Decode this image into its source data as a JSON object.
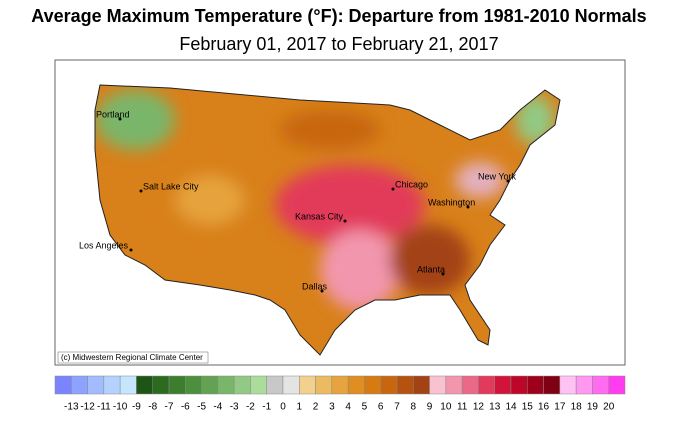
{
  "title": "Average Maximum Temperature (°F): Departure from 1981-2010 Normals",
  "subtitle": "February 01, 2017 to February 21, 2017",
  "credit": "(c) Midwestern Regional Climate Center",
  "cities": [
    "Portland",
    "Salt Lake City",
    "Los Angeles",
    "Kansas City",
    "Dallas",
    "Chicago",
    "New York",
    "Washington",
    "Atlanta"
  ],
  "legend": {
    "boundaries": [
      -13,
      -12,
      -11,
      -10,
      -9,
      -8,
      -7,
      -6,
      -5,
      -4,
      -3,
      -2,
      -1,
      0,
      1,
      2,
      3,
      4,
      5,
      6,
      7,
      8,
      9,
      10,
      11,
      12,
      13,
      14,
      15,
      16,
      17,
      18,
      19,
      20
    ],
    "colors": [
      "#7a84ff",
      "#8ea2ff",
      "#a2bcff",
      "#b4d2ff",
      "#c6e6ff",
      "#1e5416",
      "#2c6a20",
      "#3c7e2e",
      "#4c903e",
      "#62a252",
      "#7ab66a",
      "#92c984",
      "#acdc9c",
      "#c8c8c8",
      "#e4e4e4",
      "#f2d08e",
      "#ebbb62",
      "#e6a33e",
      "#e08d22",
      "#d67a12",
      "#c86610",
      "#b65210",
      "#a34212",
      "#f8c2d2",
      "#f296ae",
      "#ea6888",
      "#e23a5a",
      "#d2143a",
      "#be0628",
      "#9e001c",
      "#7e0012",
      "#ffc2f2",
      "#ff98f0",
      "#ff6cf0",
      "#ff3cf0"
    ]
  }
}
